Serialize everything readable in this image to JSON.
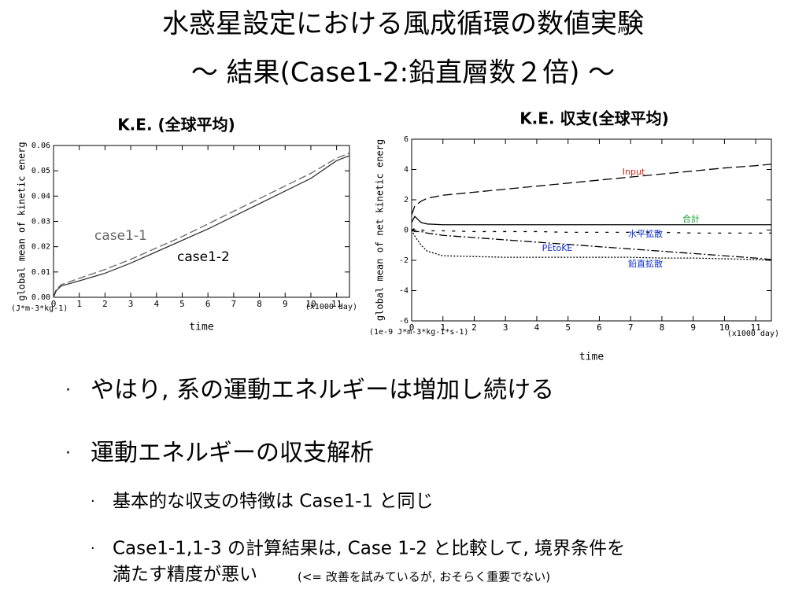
{
  "slide": {
    "title": [
      "水惑星設定における風成循環の数値実験",
      "～ 結果(Case1-2:鉛直層数２倍) ～"
    ],
    "bullets": [
      {
        "text": "やはり, 系の運動エネルギーは増加し続ける"
      },
      {
        "text": "運動エネルギーの収支解析",
        "sub": [
          {
            "lines": [
              "基本的な収支の特徴は Case1-1 と同じ"
            ]
          },
          {
            "lines": [
              "Case1-1,1-3 の計算結果は, Case 1-2 と比較して, 境界条件を",
              "満たす精度が悪い"
            ],
            "note": "(<= 改善を試みているが, おそらく重要でない)"
          }
        ]
      }
    ]
  },
  "chart_data": [
    {
      "type": "line",
      "title": "K.E. (全球平均)",
      "y_label": "global mean of kinetic energ",
      "y_unit": "(J*m-3*kg-1)",
      "x_label": "time",
      "x_unit": "(x1000 day)",
      "x": [
        0,
        0.1,
        0.3,
        1,
        2,
        3,
        4,
        5,
        6,
        7,
        8,
        9,
        10,
        11,
        11.5
      ],
      "xlim": [
        0,
        11.5
      ],
      "xticks": [
        0,
        1,
        2,
        3,
        4,
        5,
        6,
        7,
        8,
        9,
        10,
        11
      ],
      "ylim": [
        0,
        0.06
      ],
      "yticks": [
        {
          "value": 0,
          "label": "0.00"
        },
        0.01,
        0.02,
        0.03,
        0.04,
        0.05,
        0.06
      ],
      "series": [
        {
          "name": "case1-1",
          "color": "#666666",
          "dash": "10,4",
          "values": [
            0,
            0.003,
            0.005,
            0.0075,
            0.011,
            0.015,
            0.0195,
            0.024,
            0.029,
            0.034,
            0.039,
            0.044,
            0.049,
            0.055,
            0.057
          ]
        },
        {
          "name": "case1-2",
          "color": "#333333",
          "dash": "none",
          "values": [
            0,
            0.0025,
            0.0045,
            0.0065,
            0.0095,
            0.0135,
            0.018,
            0.0225,
            0.027,
            0.032,
            0.037,
            0.042,
            0.047,
            0.054,
            0.056
          ]
        }
      ]
    },
    {
      "type": "line",
      "title": "K.E. 収支(全球平均)",
      "y_label": "global mean of net kinetic energ",
      "y_unit": "(1e-9 J*m-3*kg-1*s-1)",
      "x_label": "time",
      "x_unit": "(x1000 day)",
      "x": [
        0,
        0.1,
        0.3,
        0.5,
        1,
        2,
        3,
        4,
        5,
        6,
        7,
        8,
        9,
        10,
        11,
        11.5
      ],
      "xlim": [
        0,
        11.5
      ],
      "xticks": [
        0,
        1,
        2,
        3,
        4,
        5,
        6,
        7,
        8,
        9,
        10,
        11
      ],
      "ylim": [
        -6,
        6
      ],
      "yticks": [
        -6,
        -4,
        -2,
        0,
        2,
        4,
        6
      ],
      "series": [
        {
          "name": "Input",
          "color": "#000000",
          "label_color": "#e02010",
          "dash": "12,5",
          "values": [
            1,
            1.6,
            1.9,
            2.1,
            2.3,
            2.5,
            2.7,
            2.9,
            3.1,
            3.3,
            3.5,
            3.7,
            3.9,
            4.1,
            4.25,
            4.35
          ]
        },
        {
          "name": "合計",
          "color": "#000000",
          "label_color": "#10a030",
          "dash": "none",
          "values": [
            0.5,
            0.9,
            0.5,
            0.4,
            0.35,
            0.35,
            0.35,
            0.35,
            0.35,
            0.35,
            0.35,
            0.35,
            0.35,
            0.35,
            0.35,
            0.35
          ]
        },
        {
          "name": "水平拡散",
          "color": "#000000",
          "label_color": "#1030d0",
          "dash": "4,9",
          "values": [
            0,
            0.1,
            0,
            -0.05,
            -0.05,
            -0.1,
            -0.1,
            -0.1,
            -0.15,
            -0.15,
            -0.15,
            -0.15,
            -0.2,
            -0.2,
            -0.2,
            -0.2
          ]
        },
        {
          "name": "PEtoKE",
          "color": "#000000",
          "label_color": "#1030d0",
          "dash": "10,3,2,3",
          "values": [
            0,
            -0.1,
            -0.1,
            -0.2,
            -0.35,
            -0.5,
            -0.65,
            -0.8,
            -0.95,
            -1.1,
            -1.25,
            -1.4,
            -1.55,
            -1.7,
            -1.85,
            -1.95
          ]
        },
        {
          "name": "鉛直拡散",
          "color": "#000000",
          "label_color": "#1030d0",
          "dash": "2,2",
          "values": [
            0,
            -0.4,
            -1.0,
            -1.4,
            -1.7,
            -1.75,
            -1.8,
            -1.8,
            -1.8,
            -1.8,
            -1.8,
            -1.85,
            -1.85,
            -1.9,
            -1.95,
            -2.0
          ]
        }
      ]
    }
  ]
}
